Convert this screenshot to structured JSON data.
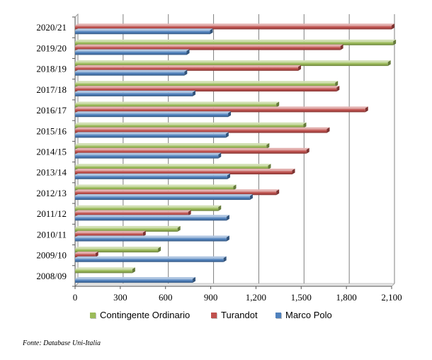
{
  "chart_data": {
    "type": "bar",
    "orientation": "horizontal",
    "title": "",
    "xlabel": "",
    "ylabel": "",
    "xlim": [
      0,
      2100
    ],
    "x_ticks": [
      "0",
      "300",
      "600",
      "900",
      "1,200",
      "1,500",
      "1,800",
      "2,100"
    ],
    "x_tick_values": [
      0,
      300,
      600,
      900,
      1200,
      1500,
      1800,
      2100
    ],
    "grid": "vertical",
    "legend_position": "bottom",
    "categories": [
      "2020/21",
      "2019/20",
      "2018/19",
      "2017/18",
      "2016/17",
      "2015/16",
      "2014/15",
      "2013/14",
      "2012/13",
      "2011/12",
      "2010/11",
      "2009/10",
      "2008/09"
    ],
    "series": [
      {
        "name": "Contingente Ordinario",
        "color": "#9BBB59",
        "values": [
          0,
          2110,
          2075,
          1725,
          1335,
          1515,
          1270,
          1280,
          1050,
          950,
          680,
          550,
          380
        ]
      },
      {
        "name": "Turandot",
        "color": "#C0504D",
        "values": [
          2100,
          1760,
          1480,
          1735,
          1925,
          1670,
          1535,
          1440,
          1335,
          750,
          450,
          135,
          0
        ]
      },
      {
        "name": "Marco Polo",
        "color": "#4F81BD",
        "values": [
          895,
          740,
          725,
          780,
          1015,
          1000,
          950,
          1010,
          1160,
          1005,
          1005,
          985,
          780
        ]
      }
    ]
  },
  "legend": {
    "items": [
      {
        "label": "Contingente Ordinario",
        "color": "#9BBB59"
      },
      {
        "label": "Turandot",
        "color": "#C0504D"
      },
      {
        "label": "Marco Polo",
        "color": "#4F81BD"
      }
    ]
  },
  "source_note": "Fonte: Database Uni-Italia"
}
